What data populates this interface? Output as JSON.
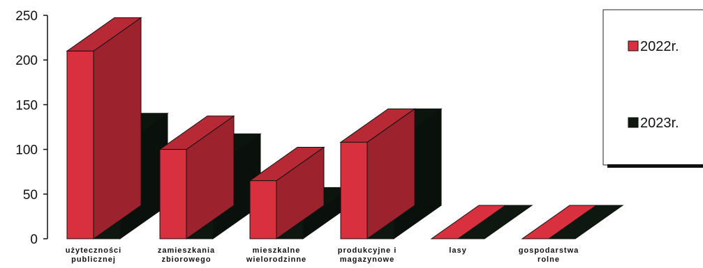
{
  "chart_data": {
    "type": "bar",
    "title": "",
    "xlabel": "",
    "ylabel": "",
    "ylim": [
      0,
      250
    ],
    "yticks": [
      0,
      50,
      100,
      150,
      200,
      250
    ],
    "grid": false,
    "legend_position": "top-right",
    "categories": [
      [
        "użyteczności",
        "publicznej"
      ],
      [
        "zamieszkania",
        "zbiorowego"
      ],
      [
        "mieszkalne",
        "wielorodzinne"
      ],
      [
        "produkcyjne i",
        "magazynowe"
      ],
      [
        "lasy"
      ],
      [
        "gospodarstwa",
        "rolne"
      ]
    ],
    "series": [
      {
        "name": "2022r.",
        "color": "#d9303f",
        "values": [
          210,
          100,
          65,
          108,
          0,
          0
        ]
      },
      {
        "name": "2023r.",
        "color": "#0e1710",
        "values": [
          103,
          80,
          20,
          108,
          0,
          0
        ]
      }
    ]
  }
}
